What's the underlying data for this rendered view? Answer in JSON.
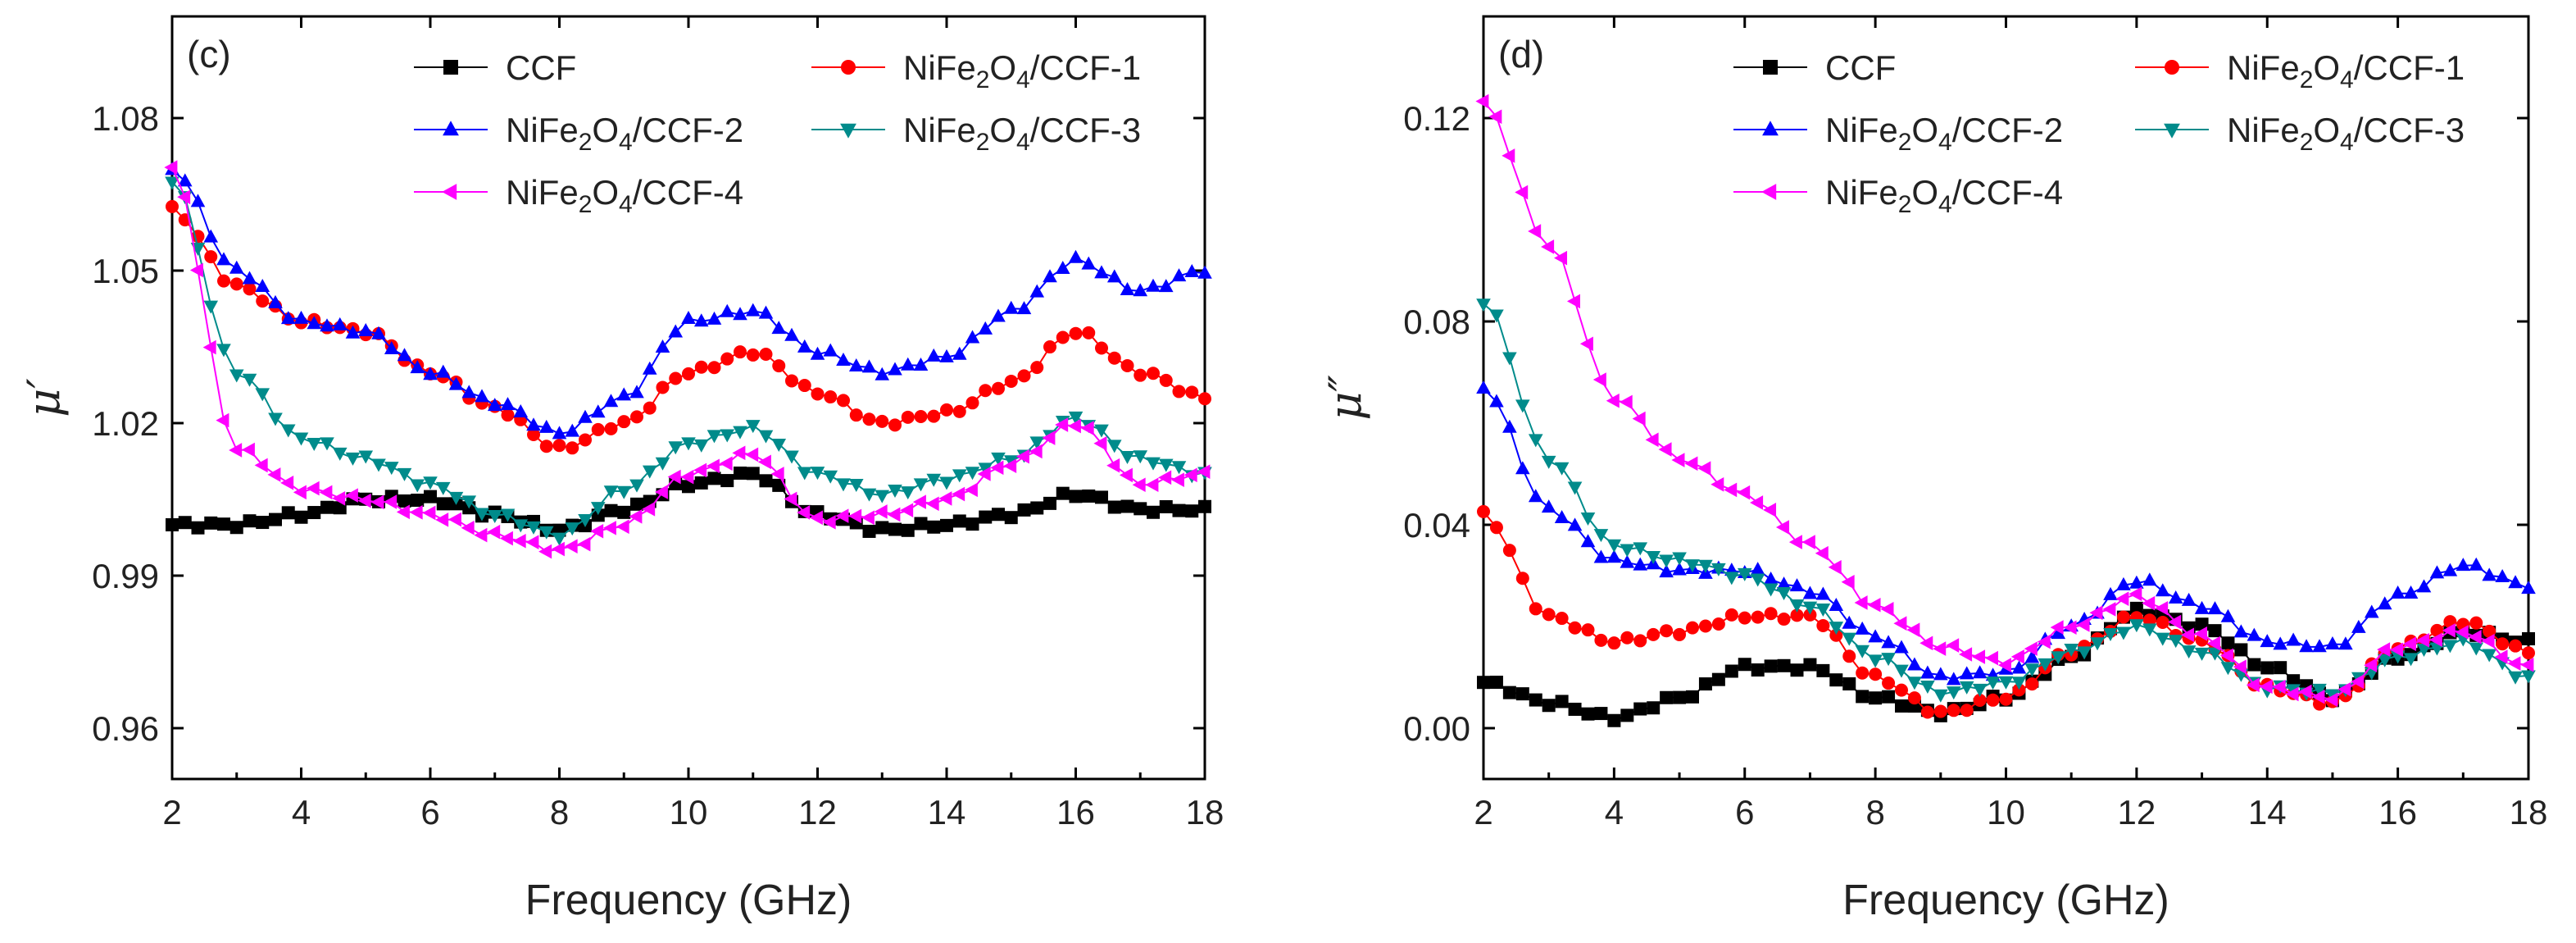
{
  "chart_data": [
    {
      "type": "line",
      "panel": "(c)",
      "xlabel": "Frequency (GHz)",
      "ylabel": "μ′",
      "xlim": [
        2,
        18
      ],
      "ylim": [
        0.95,
        1.1
      ],
      "xticks": [
        2,
        4,
        6,
        8,
        10,
        12,
        14,
        16,
        18
      ],
      "yticks": [
        0.96,
        0.99,
        1.02,
        1.05,
        1.08
      ],
      "ytick_labels": [
        "0.96",
        "0.99",
        "1.02",
        "1.05",
        "1.08"
      ],
      "legend": [
        "CCF",
        "NiFe2O4/CCF-1",
        "NiFe2O4/CCF-2",
        "NiFe2O4/CCF-3",
        "NiFe2O4/CCF-4"
      ],
      "x": [
        2,
        3,
        4,
        5,
        6,
        7,
        8,
        9,
        10,
        11,
        12,
        13,
        14,
        15,
        16,
        17,
        18
      ],
      "series": [
        {
          "name": "CCF",
          "color": "#000000",
          "marker": "square",
          "values": [
            1.0,
            1.0,
            1.002,
            1.005,
            1.005,
            1.002,
            0.999,
            1.003,
            1.008,
            1.01,
            1.002,
            0.999,
            1.0,
            1.002,
            1.006,
            1.003,
            1.003
          ]
        },
        {
          "name": "NiFe2O4/CCF-1",
          "color": "#ff0000",
          "marker": "circle",
          "values": [
            1.062,
            1.047,
            1.04,
            1.038,
            1.03,
            1.023,
            1.015,
            1.02,
            1.03,
            1.034,
            1.026,
            1.02,
            1.022,
            1.028,
            1.038,
            1.03,
            1.025
          ]
        },
        {
          "name": "NiFe2O4/CCF-2",
          "color": "#0000ff",
          "marker": "triangle-up",
          "values": [
            1.07,
            1.05,
            1.04,
            1.038,
            1.03,
            1.024,
            1.018,
            1.025,
            1.04,
            1.042,
            1.034,
            1.03,
            1.033,
            1.042,
            1.052,
            1.046,
            1.05
          ]
        },
        {
          "name": "NiFe2O4/CCF-3",
          "color": "#008b8b",
          "marker": "triangle-down",
          "values": [
            1.068,
            1.03,
            1.017,
            1.013,
            1.008,
            1.002,
            0.998,
            1.007,
            1.016,
            1.019,
            1.01,
            1.006,
            1.009,
            1.013,
            1.021,
            1.013,
            1.01
          ]
        },
        {
          "name": "NiFe2O4/CCF-4",
          "color": "#ff00ff",
          "marker": "triangle-left",
          "values": [
            1.07,
            1.015,
            1.007,
            1.005,
            1.002,
            0.998,
            0.995,
            1.0,
            1.01,
            1.014,
            1.001,
            1.002,
            1.005,
            1.012,
            1.02,
            1.008,
            1.01
          ]
        }
      ]
    },
    {
      "type": "line",
      "panel": "(d)",
      "xlabel": "Frequency (GHz)",
      "ylabel": "μ″",
      "xlim": [
        2,
        18
      ],
      "ylim": [
        -0.01,
        0.14
      ],
      "xticks": [
        2,
        4,
        6,
        8,
        10,
        12,
        14,
        16,
        18
      ],
      "yticks": [
        0.0,
        0.04,
        0.08,
        0.12
      ],
      "ytick_labels": [
        "0.00",
        "0.04",
        "0.08",
        "0.12"
      ],
      "legend": [
        "CCF",
        "NiFe2O4/CCF-1",
        "NiFe2O4/CCF-2",
        "NiFe2O4/CCF-3",
        "NiFe2O4/CCF-4"
      ],
      "x": [
        2,
        3,
        4,
        5,
        6,
        7,
        8,
        9,
        10,
        11,
        12,
        13,
        14,
        15,
        16,
        17,
        18
      ],
      "series": [
        {
          "name": "CCF",
          "color": "#000000",
          "marker": "square",
          "values": [
            0.009,
            0.005,
            0.002,
            0.006,
            0.012,
            0.012,
            0.006,
            0.003,
            0.006,
            0.014,
            0.023,
            0.02,
            0.012,
            0.006,
            0.014,
            0.019,
            0.017
          ]
        },
        {
          "name": "NiFe2O4/CCF-1",
          "color": "#ff0000",
          "marker": "circle",
          "values": [
            0.042,
            0.022,
            0.017,
            0.019,
            0.022,
            0.022,
            0.01,
            0.003,
            0.006,
            0.015,
            0.022,
            0.017,
            0.008,
            0.005,
            0.016,
            0.021,
            0.015
          ]
        },
        {
          "name": "NiFe2O4/CCF-2",
          "color": "#0000ff",
          "marker": "triangle-up",
          "values": [
            0.067,
            0.043,
            0.033,
            0.031,
            0.031,
            0.027,
            0.018,
            0.01,
            0.011,
            0.02,
            0.029,
            0.024,
            0.017,
            0.016,
            0.026,
            0.032,
            0.028
          ]
        },
        {
          "name": "NiFe2O4/CCF-3",
          "color": "#008b8b",
          "marker": "triangle-down",
          "values": [
            0.084,
            0.053,
            0.036,
            0.033,
            0.03,
            0.024,
            0.014,
            0.007,
            0.009,
            0.015,
            0.02,
            0.015,
            0.008,
            0.007,
            0.014,
            0.017,
            0.01
          ]
        },
        {
          "name": "NiFe2O4/CCF-4",
          "color": "#ff00ff",
          "marker": "triangle-left",
          "values": [
            0.123,
            0.095,
            0.065,
            0.053,
            0.046,
            0.036,
            0.024,
            0.016,
            0.013,
            0.02,
            0.026,
            0.018,
            0.008,
            0.006,
            0.016,
            0.019,
            0.012
          ]
        }
      ]
    }
  ],
  "labels": {
    "ni": "NiFe",
    "o": "O",
    "sub2": "2",
    "sub4": "4"
  }
}
